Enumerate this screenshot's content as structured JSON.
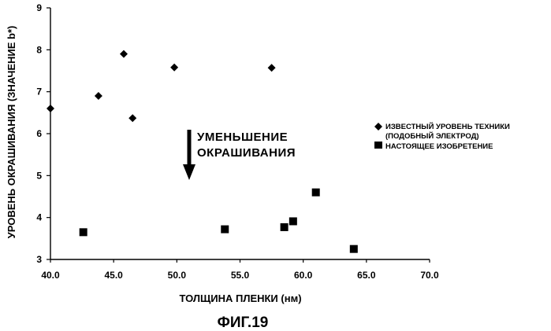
{
  "chart_data": {
    "type": "scatter",
    "title": "",
    "xlabel": "ТОЛЩИНА ПЛЕНКИ (нм)",
    "ylabel": "УРОВЕНЬ ОКРАШИВАНИЯ (ЗНАЧЕНИЕ b*)",
    "xlim": [
      40.0,
      70.0
    ],
    "ylim": [
      3,
      9
    ],
    "x_ticks": [
      "40.0",
      "45.0",
      "50.0",
      "55.0",
      "60.0",
      "65.0",
      "70.0"
    ],
    "y_ticks": [
      "3",
      "4",
      "5",
      "6",
      "7",
      "8",
      "9"
    ],
    "grid": false,
    "legend_position": "right",
    "series": [
      {
        "name_lines": [
          "ИЗВЕСТНЫЙ УРОВЕНЬ ТЕХНИКИ",
          "(ПОДОБНЫЙ ЭЛЕКТРОД)"
        ],
        "marker": "diamond",
        "points": [
          {
            "x": 40.0,
            "y": 6.6
          },
          {
            "x": 43.8,
            "y": 6.9
          },
          {
            "x": 45.8,
            "y": 7.9
          },
          {
            "x": 46.5,
            "y": 6.37
          },
          {
            "x": 49.8,
            "y": 7.58
          },
          {
            "x": 57.5,
            "y": 7.57
          }
        ]
      },
      {
        "name_lines": [
          "НАСТОЯЩЕЕ ИЗОБРЕТЕНИЕ"
        ],
        "marker": "square",
        "points": [
          {
            "x": 42.6,
            "y": 3.65
          },
          {
            "x": 53.8,
            "y": 3.72
          },
          {
            "x": 58.5,
            "y": 3.77
          },
          {
            "x": 59.2,
            "y": 3.91
          },
          {
            "x": 61.0,
            "y": 4.6
          },
          {
            "x": 64.0,
            "y": 3.25
          }
        ]
      }
    ],
    "annotation": {
      "lines": [
        "УМЕНЬШЕНИЕ",
        "ОКРАШИВАНИЯ"
      ],
      "arrow": "down"
    }
  },
  "caption": "ФИГ.19"
}
